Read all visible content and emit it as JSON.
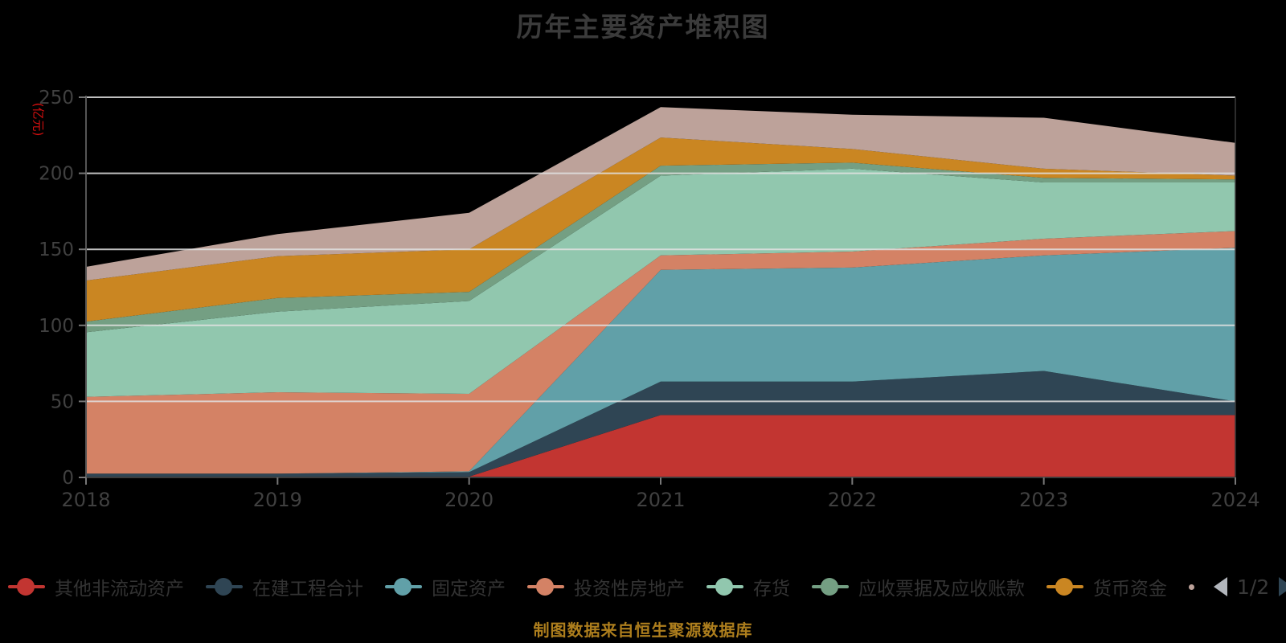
{
  "title": "历年主要资产堆积图",
  "y_axis": {
    "unit_label": "(亿元)",
    "unit_color": "#d60f0f",
    "ticks": [
      0,
      50,
      100,
      150,
      200,
      250
    ]
  },
  "x_axis": {
    "years": [
      "2018",
      "2019",
      "2020",
      "2021",
      "2022",
      "2023",
      "2024"
    ]
  },
  "legend": {
    "items": [
      {
        "id": "other-non-current-assets",
        "label": "其他非流动资产",
        "color": "#c23531"
      },
      {
        "id": "construction-in-progress",
        "label": "在建工程合计",
        "color": "#2f4554"
      },
      {
        "id": "fixed-assets",
        "label": "固定资产",
        "color": "#61a0a8"
      },
      {
        "id": "investment-property",
        "label": "投资性房地产",
        "color": "#d48265"
      },
      {
        "id": "inventory",
        "label": "存货",
        "color": "#91c7ae"
      },
      {
        "id": "notes-and-accounts-receivable",
        "label": "应收票据及应收账款",
        "color": "#749f83"
      },
      {
        "id": "cash-and-equivalents",
        "label": "货币资金",
        "color": "#ca8622"
      }
    ],
    "pager": {
      "text": "1/2",
      "prev_color": "#b2b6bc",
      "next_color": "#2f4554",
      "peek_color": "#bda29a"
    }
  },
  "caption": "制图数据来自恒生聚源数据库",
  "chart_data": {
    "type": "area",
    "stacked": true,
    "title": "历年主要资产堆积图",
    "xlabel": "",
    "ylabel": "(亿元)",
    "ylim": [
      0,
      250
    ],
    "yticks": [
      0,
      50,
      100,
      150,
      200,
      250
    ],
    "grid": true,
    "legend_position": "bottom",
    "x": [
      "2018",
      "2019",
      "2020",
      "2021",
      "2022",
      "2023",
      "2024"
    ],
    "series": [
      {
        "id": "other-non-current-assets",
        "name": "其他非流动资产",
        "color": "#c23531",
        "values": [
          0.3,
          0.3,
          0.5,
          41,
          41,
          41,
          41
        ]
      },
      {
        "id": "construction-in-progress",
        "name": "在建工程合计",
        "color": "#2f4554",
        "values": [
          2.2,
          2.2,
          3,
          22,
          22,
          29,
          9
        ]
      },
      {
        "id": "fixed-assets",
        "name": "固定资产",
        "color": "#61a0a8",
        "values": [
          0,
          0,
          0.5,
          73.5,
          75,
          76,
          101
        ]
      },
      {
        "id": "investment-property",
        "name": "投资性房地产",
        "color": "#d48265",
        "values": [
          50.5,
          53.5,
          51,
          9.5,
          10.5,
          11,
          11
        ]
      },
      {
        "id": "inventory",
        "name": "存货",
        "color": "#91c7ae",
        "values": [
          42.5,
          53,
          61,
          52.5,
          54.5,
          37,
          32
        ]
      },
      {
        "id": "notes-and-accounts-receivable",
        "name": "应收票据及应收账款",
        "color": "#749f83",
        "values": [
          7,
          9,
          6,
          6.5,
          4,
          3,
          2
        ]
      },
      {
        "id": "cash-and-equivalents",
        "name": "货币资金",
        "color": "#ca8622",
        "values": [
          27,
          27.5,
          28,
          18.5,
          9,
          6,
          2.5
        ]
      },
      {
        "id": "unnamed-series-page2",
        "name": "",
        "legend_visible": false,
        "color": "#bda29a",
        "values": [
          9,
          14.5,
          24,
          20,
          22.5,
          33.5,
          21.5
        ]
      }
    ]
  }
}
